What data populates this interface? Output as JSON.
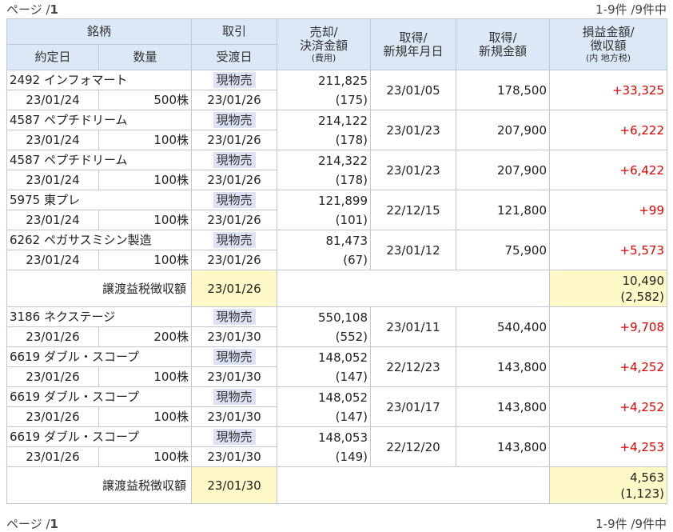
{
  "pager": {
    "page_label": "ページ /",
    "page_num": "1",
    "count_text": "1-9件 /9件中"
  },
  "header": {
    "meigara": "銘柄",
    "torihiki": "取引",
    "baikyaku_line1": "売却/",
    "baikyaku_line2": "決済金額",
    "baikyaku_sub": "(費用)",
    "shutoku_date_line1": "取得/",
    "shutoku_date_line2": "新規年月日",
    "shutoku_amt_line1": "取得/",
    "shutoku_amt_line2": "新規金額",
    "pl_line1": "損益金額/",
    "pl_line2": "徴収額",
    "pl_sub": "(内 地方税)",
    "yakutei": "約定日",
    "suryo": "数量",
    "ukewatashi": "受渡日"
  },
  "rows": [
    {
      "name": "2492 インフォマート",
      "kind": "現物売",
      "trade_date": "23/01/24",
      "qty": "500株",
      "settle_date": "23/01/26",
      "amount": "211,825",
      "fee": "(175)",
      "acq_date": "23/01/05",
      "acq_amount": "178,500",
      "pl": "+33,325"
    },
    {
      "name": "4587 ペプチドリーム",
      "kind": "現物売",
      "trade_date": "23/01/24",
      "qty": "100株",
      "settle_date": "23/01/26",
      "amount": "214,122",
      "fee": "(178)",
      "acq_date": "23/01/23",
      "acq_amount": "207,900",
      "pl": "+6,222"
    },
    {
      "name": "4587 ペプチドリーム",
      "kind": "現物売",
      "trade_date": "23/01/24",
      "qty": "100株",
      "settle_date": "23/01/26",
      "amount": "214,322",
      "fee": "(178)",
      "acq_date": "23/01/23",
      "acq_amount": "207,900",
      "pl": "+6,422"
    },
    {
      "name": "5975 東プレ",
      "kind": "現物売",
      "trade_date": "23/01/24",
      "qty": "100株",
      "settle_date": "23/01/26",
      "amount": "121,899",
      "fee": "(101)",
      "acq_date": "22/12/15",
      "acq_amount": "121,800",
      "pl": "+99"
    },
    {
      "name": "6262 ペガサスミシン製造",
      "kind": "現物売",
      "trade_date": "23/01/24",
      "qty": "100株",
      "settle_date": "23/01/26",
      "amount": "81,473",
      "fee": "(67)",
      "acq_date": "23/01/12",
      "acq_amount": "75,900",
      "pl": "+5,573"
    }
  ],
  "tax1": {
    "label": "譲渡益税徴収額",
    "date": "23/01/26",
    "amount": "10,490",
    "local": "(2,582)"
  },
  "rows2": [
    {
      "name": "3186 ネクステージ",
      "kind": "現物売",
      "trade_date": "23/01/26",
      "qty": "200株",
      "settle_date": "23/01/30",
      "amount": "550,108",
      "fee": "(552)",
      "acq_date": "23/01/11",
      "acq_amount": "540,400",
      "pl": "+9,708"
    },
    {
      "name": "6619 ダブル・スコープ",
      "kind": "現物売",
      "trade_date": "23/01/26",
      "qty": "100株",
      "settle_date": "23/01/30",
      "amount": "148,052",
      "fee": "(147)",
      "acq_date": "22/12/23",
      "acq_amount": "143,800",
      "pl": "+4,252"
    },
    {
      "name": "6619 ダブル・スコープ",
      "kind": "現物売",
      "trade_date": "23/01/26",
      "qty": "100株",
      "settle_date": "23/01/30",
      "amount": "148,052",
      "fee": "(147)",
      "acq_date": "23/01/17",
      "acq_amount": "143,800",
      "pl": "+4,252"
    },
    {
      "name": "6619 ダブル・スコープ",
      "kind": "現物売",
      "trade_date": "23/01/26",
      "qty": "100株",
      "settle_date": "23/01/30",
      "amount": "148,053",
      "fee": "(149)",
      "acq_date": "22/12/20",
      "acq_amount": "143,800",
      "pl": "+4,253"
    }
  ],
  "tax2": {
    "label": "譲渡益税徴収額",
    "date": "23/01/30",
    "amount": "4,563",
    "local": "(1,123)"
  },
  "colors": {
    "header_bg": "#dbe8f5",
    "kind_bg": "#dde3f5",
    "tax_bg": "#fff9c8",
    "profit": "#e00000"
  }
}
